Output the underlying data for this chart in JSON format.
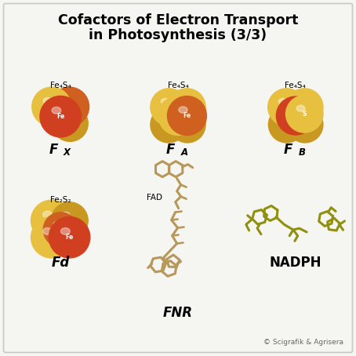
{
  "title_line1": "Cofactors of Electron Transport",
  "title_line2": "in Photosynthesis (3/3)",
  "background_color": "#f5f5f2",
  "border_color": "#c8c8c8",
  "title_fontsize": 12.5,
  "copyright": "© Scigrafik & Agrisera",
  "S_yellow_light": "#e8c040",
  "S_yellow_dark": "#c89820",
  "Fe_red_light": "#d04020",
  "Fe_red_dark": "#a02818",
  "Fe_orange": "#d06020",
  "FNR_color": "#b89858",
  "NADPH_color": "#909010"
}
